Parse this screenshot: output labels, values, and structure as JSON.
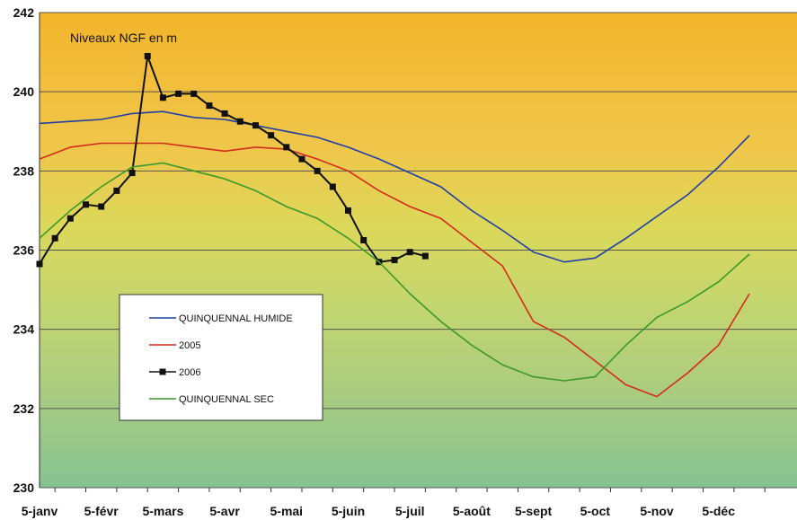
{
  "chart_data": {
    "type": "line",
    "annotation": "Niveaux NGF en m",
    "categories": [
      "5-janv",
      "5-févr",
      "5-mars",
      "5-avr",
      "5-mai",
      "5-juin",
      "5-juil",
      "5-août",
      "5-sept",
      "5-oct",
      "5-nov",
      "5-déc"
    ],
    "ylim": [
      230,
      242
    ],
    "yticks": [
      "230",
      "232",
      "234",
      "236",
      "238",
      "240",
      "242"
    ],
    "grid": true,
    "legend_position": "bottom-left",
    "colors": {
      "background_top": "#f2b830",
      "background_bottom": "#8cc488",
      "gridline": "#555555"
    },
    "series": [
      {
        "name": "QUINQUENNAL HUMIDE",
        "color": "#1f3fa8",
        "marker": "none",
        "x": [
          0,
          0.5,
          1,
          1.5,
          2,
          2.5,
          3,
          3.5,
          4,
          4.5,
          5,
          5.5,
          6,
          6.5,
          7,
          7.5,
          8,
          8.5,
          9,
          9.5,
          10,
          10.5,
          11,
          11.5
        ],
        "y": [
          239.2,
          239.25,
          239.3,
          239.45,
          239.5,
          239.35,
          239.3,
          239.15,
          239.0,
          238.85,
          238.6,
          238.3,
          237.95,
          237.6,
          237.0,
          236.5,
          235.95,
          235.7,
          235.8,
          236.3,
          236.85,
          237.4,
          238.1,
          238.9
        ]
      },
      {
        "name": "2005",
        "color": "#d42a1c",
        "marker": "none",
        "x": [
          0,
          0.5,
          1,
          1.5,
          2,
          2.5,
          3,
          3.5,
          4,
          4.5,
          5,
          5.5,
          6,
          6.5,
          7,
          7.5,
          8,
          8.5,
          9,
          9.5,
          10,
          10.5,
          11,
          11.5
        ],
        "y": [
          238.3,
          238.6,
          238.7,
          238.7,
          238.7,
          238.6,
          238.5,
          238.6,
          238.55,
          238.3,
          238.0,
          237.5,
          237.1,
          236.8,
          236.2,
          235.6,
          234.2,
          233.8,
          233.2,
          232.6,
          232.3,
          232.9,
          233.6,
          234.9
        ]
      },
      {
        "name": "2006",
        "color": "#111111",
        "marker": "square",
        "x": [
          0,
          0.25,
          0.5,
          0.75,
          1,
          1.25,
          1.5,
          1.75,
          2,
          2.25,
          2.5,
          2.75,
          3,
          3.25,
          3.5,
          3.75,
          4,
          4.25,
          4.5,
          4.75,
          5,
          5.25,
          5.5,
          5.75,
          6,
          6.25,
          6.5,
          6.75,
          7,
          7.25
        ],
        "y": [
          235.65,
          236.3,
          236.8,
          237.15,
          237.1,
          237.5,
          237.95,
          240.9,
          239.85,
          239.95,
          239.95,
          239.65,
          239.45,
          239.25,
          239.15,
          238.9,
          238.6,
          238.3,
          238.0,
          237.6,
          237.0,
          236.25,
          235.7,
          235.75,
          235.95,
          235.85,
          null,
          null,
          null,
          null
        ]
      },
      {
        "name": "QUINQUENNAL SEC",
        "color": "#3a9a2a",
        "marker": "none",
        "x": [
          0,
          0.5,
          1,
          1.5,
          2,
          2.5,
          3,
          3.5,
          4,
          4.5,
          5,
          5.5,
          6,
          6.5,
          7,
          7.5,
          8,
          8.5,
          9,
          9.5,
          10,
          10.5,
          11,
          11.5
        ],
        "y": [
          236.3,
          237.0,
          237.6,
          238.1,
          238.2,
          238.0,
          237.8,
          237.5,
          237.1,
          236.8,
          236.3,
          235.7,
          234.9,
          234.2,
          233.6,
          233.1,
          232.8,
          232.7,
          232.8,
          233.6,
          234.3,
          234.7,
          235.2,
          235.9
        ]
      }
    ]
  }
}
